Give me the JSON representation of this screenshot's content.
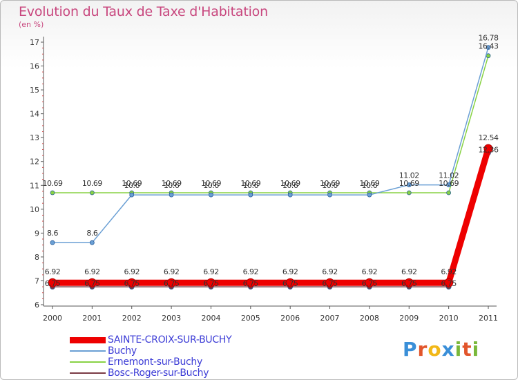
{
  "chart_data": {
    "type": "line",
    "title": "Evolution du Taux de Taxe d'Habitation",
    "subtitle": "(en %)",
    "xlabel": "",
    "ylabel": "",
    "categories": [
      "2000",
      "2001",
      "2002",
      "2003",
      "2004",
      "2005",
      "2006",
      "2007",
      "2008",
      "2009",
      "2010",
      "2011"
    ],
    "ylim": [
      6,
      17
    ],
    "yticks": [
      "6",
      "7",
      "8",
      "9",
      "10",
      "11",
      "12",
      "13",
      "14",
      "15",
      "16",
      "17"
    ],
    "grid": false,
    "legend_position": "bottom-left",
    "series": [
      {
        "name": "SAINTE-CROIX-SUR-BUCHY",
        "color": "#ee0000",
        "values": [
          6.92,
          6.92,
          6.92,
          6.92,
          6.92,
          6.92,
          6.92,
          6.92,
          6.92,
          6.92,
          6.92,
          12.54
        ],
        "labels": [
          "6.92",
          "6.92",
          "6.92",
          "6.92",
          "6.92",
          "6.92",
          "6.92",
          "6.92",
          "6.92",
          "6.92",
          "6.92",
          "12.54"
        ]
      },
      {
        "name": "Buchy",
        "color": "#6a9fd4",
        "values": [
          8.6,
          8.6,
          10.6,
          10.6,
          10.6,
          10.6,
          10.6,
          10.6,
          10.6,
          11.02,
          11.02,
          16.78
        ],
        "labels": [
          "8.6",
          "8.6",
          "10.6",
          "10.6",
          "10.6",
          "10.6",
          "10.6",
          "10.6",
          "10.6",
          "11.02",
          "11.02",
          "16.78"
        ]
      },
      {
        "name": "Ernemont-sur-Buchy",
        "color": "#88d244",
        "values": [
          10.69,
          10.69,
          10.69,
          10.69,
          10.69,
          10.69,
          10.69,
          10.69,
          10.69,
          10.69,
          10.69,
          16.43
        ],
        "labels": [
          "10.69",
          "10.69",
          "10.69",
          "10.69",
          "10.69",
          "10.69",
          "10.69",
          "10.69",
          "10.69",
          "10.69",
          "10.69",
          "16.43"
        ]
      },
      {
        "name": "Bosc-Roger-sur-Buchy",
        "color": "#7a3a44",
        "values": [
          6.75,
          6.75,
          6.75,
          6.75,
          6.75,
          6.75,
          6.75,
          6.75,
          6.75,
          6.75,
          6.75,
          12.36
        ],
        "labels": [
          "6.75",
          "6.75",
          "6.75",
          "6.75",
          "6.75",
          "6.75",
          "6.75",
          "6.75",
          "6.75",
          "6.75",
          "6.75",
          "12.36"
        ]
      }
    ]
  },
  "legend": {
    "items": [
      {
        "label": "SAINTE-CROIX-SUR-BUCHY"
      },
      {
        "label": "Buchy"
      },
      {
        "label": "Ernemont-sur-Buchy"
      },
      {
        "label": "Bosc-Roger-sur-Buchy"
      }
    ]
  },
  "brand": {
    "letters": [
      "P",
      "r",
      "o",
      "x",
      "i",
      "t",
      "i"
    ],
    "colors": [
      "#3a8fd8",
      "#e2552b",
      "#f2b817",
      "#3a8fd8",
      "#79b83a",
      "#e2552b",
      "#79b83a"
    ]
  }
}
